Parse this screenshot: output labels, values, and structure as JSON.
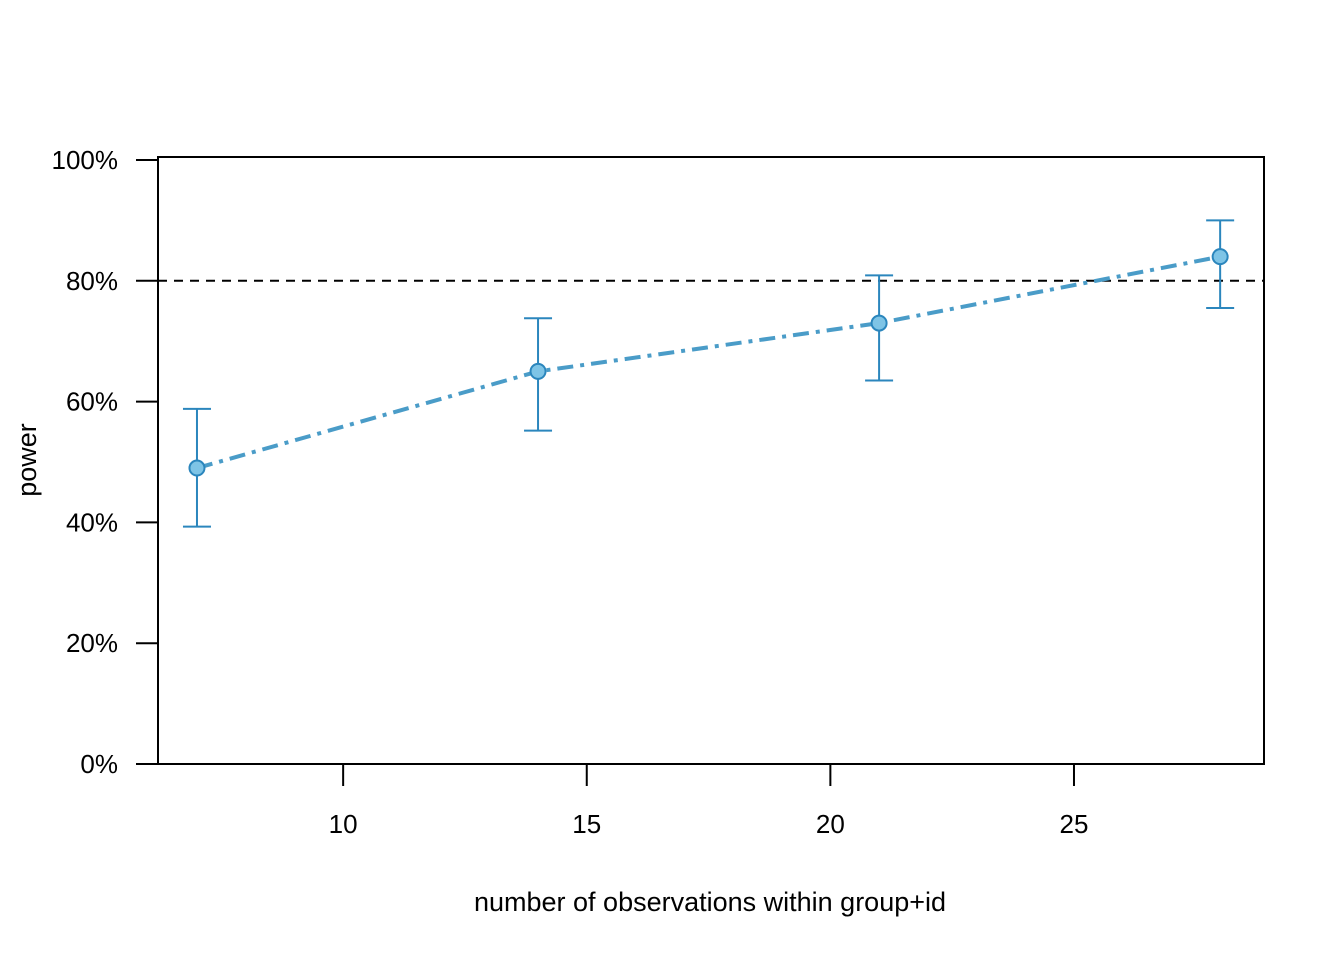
{
  "chart_data": {
    "type": "line",
    "xlabel": "number of observations within group+id",
    "ylabel": "power",
    "xlim": [
      6.2,
      28.9
    ],
    "ylim": [
      0,
      100
    ],
    "x_ticks": [
      10,
      15,
      20,
      25
    ],
    "x_tick_labels": [
      "10",
      "15",
      "20",
      "25"
    ],
    "y_ticks": [
      0,
      20,
      40,
      60,
      80,
      100
    ],
    "y_tick_labels": [
      "0%",
      "20%",
      "40%",
      "60%",
      "80%",
      "100%"
    ],
    "reference_line": {
      "y": 80,
      "style": "dashed",
      "color": "#000000"
    },
    "grid": false,
    "series": [
      {
        "color": "#4a9cc8",
        "marker_fill": "#7ec4e6",
        "marker_stroke": "#2b86bd",
        "errorbar_color": "#2b86bd",
        "points": [
          {
            "x": 7,
            "y": 49,
            "lower": 39.3,
            "upper": 58.8
          },
          {
            "x": 14,
            "y": 65,
            "lower": 55.2,
            "upper": 73.8
          },
          {
            "x": 21,
            "y": 73,
            "lower": 63.5,
            "upper": 80.9
          },
          {
            "x": 28,
            "y": 84,
            "lower": 75.5,
            "upper": 90.0
          }
        ]
      }
    ]
  }
}
